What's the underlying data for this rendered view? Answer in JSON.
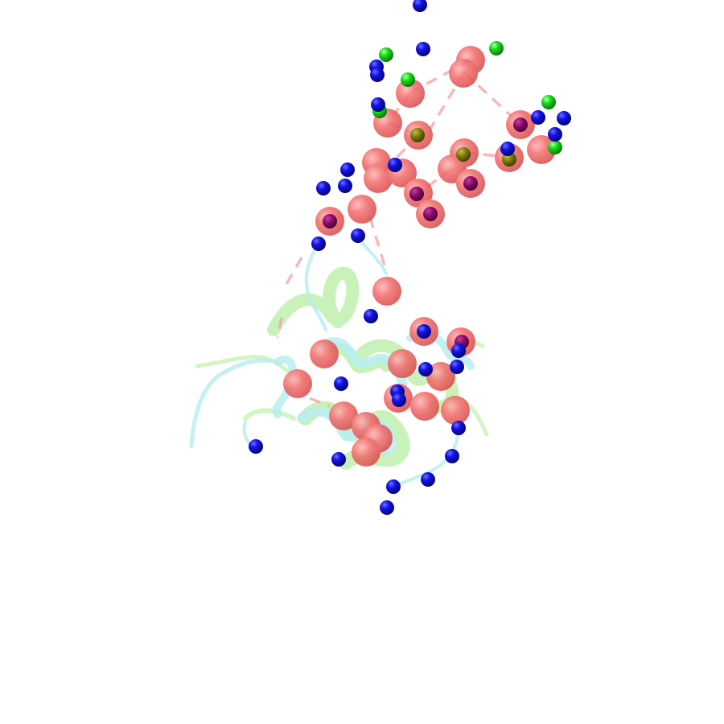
{
  "scene": {
    "subject": "protein-structure-render",
    "background_color": "#ffffff",
    "colors": {
      "large_sphere": "#f26a6a",
      "blue_sphere": "#1010e0",
      "green_sphere": "#18e018",
      "cartoon_cyan": "#b8eef2",
      "cartoon_green": "#c9f5b8",
      "dash": "#f3a8a8"
    }
  }
}
